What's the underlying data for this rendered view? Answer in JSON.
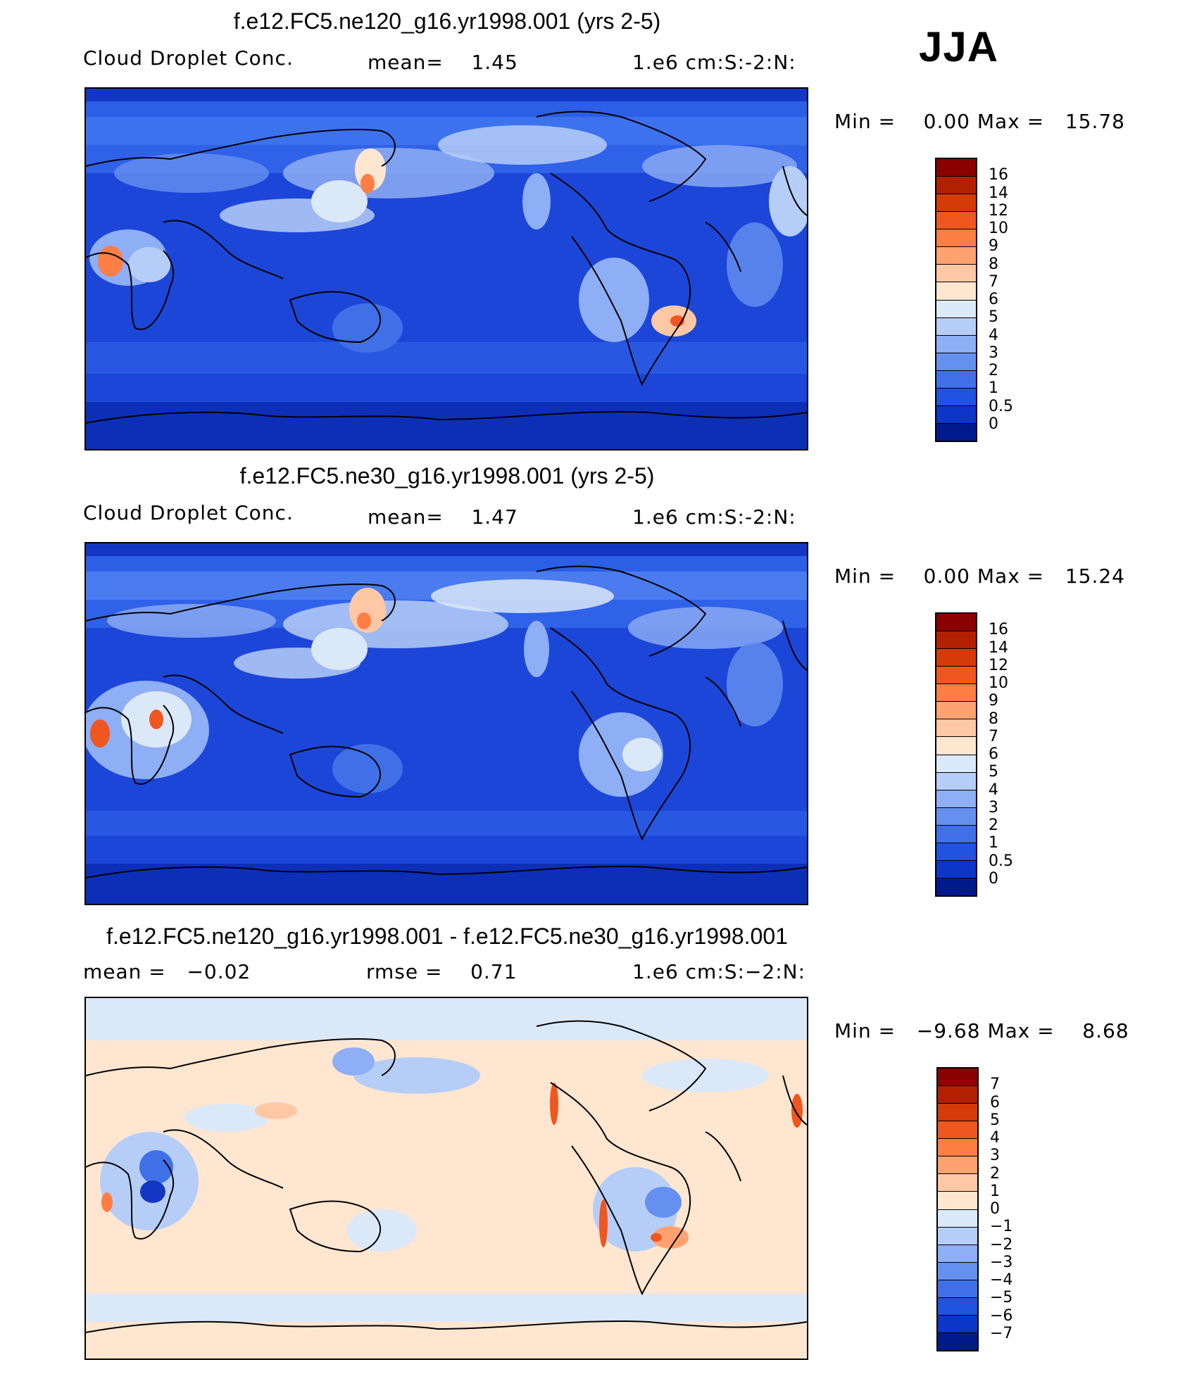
{
  "season": "JJA",
  "panels": [
    {
      "title": "f.e12.FC5.ne120_g16.yr1998.001 (yrs 2-5)",
      "left_label": "Cloud Droplet Conc.",
      "mid_label": "mean=    1.45",
      "right_label": "1.e6 cm:S:-2:N:",
      "min_max": "Min =    0.00 Max =   15.78",
      "colorbar": {
        "labels": [
          "16",
          "14",
          "12",
          "10",
          "9",
          "8",
          "7",
          "6",
          "5",
          "4",
          "3",
          "2",
          "1",
          "0.5",
          "0"
        ],
        "colors": [
          "#8b0000",
          "#b22000",
          "#d43a0a",
          "#f0561f",
          "#ff7e45",
          "#ffa270",
          "#ffc8a5",
          "#ffe6d1",
          "#dbe8f8",
          "#b6cef7",
          "#8eaef5",
          "#6690f0",
          "#3f70e8",
          "#2152e0",
          "#0c36c8",
          "#001a8e"
        ]
      }
    },
    {
      "title": "f.e12.FC5.ne30_g16.yr1998.001 (yrs 2-5)",
      "left_label": "Cloud Droplet Conc.",
      "mid_label": "mean=    1.47",
      "right_label": "1.e6 cm:S:-2:N:",
      "min_max": "Min =    0.00 Max =   15.24",
      "colorbar": {
        "labels": [
          "16",
          "14",
          "12",
          "10",
          "9",
          "8",
          "7",
          "6",
          "5",
          "4",
          "3",
          "2",
          "1",
          "0.5",
          "0"
        ],
        "colors": [
          "#8b0000",
          "#b22000",
          "#d43a0a",
          "#f0561f",
          "#ff7e45",
          "#ffa270",
          "#ffc8a5",
          "#ffe6d1",
          "#dbe8f8",
          "#b6cef7",
          "#8eaef5",
          "#6690f0",
          "#3f70e8",
          "#2152e0",
          "#0c36c8",
          "#001a8e"
        ]
      }
    },
    {
      "title": "f.e12.FC5.ne120_g16.yr1998.001 - f.e12.FC5.ne30_g16.yr1998.001",
      "left_label": "mean =   −0.02",
      "mid_label": "rmse =    0.71",
      "right_label": "1.e6 cm:S:−2:N:",
      "min_max": "Min =   −9.68 Max =    8.68",
      "colorbar": {
        "labels": [
          "7",
          "6",
          "5",
          "4",
          "3",
          "2",
          "1",
          "0",
          "−1",
          "−2",
          "−3",
          "−4",
          "−5",
          "−6",
          "−7"
        ],
        "colors": [
          "#8b0000",
          "#b22000",
          "#d43a0a",
          "#f0561f",
          "#ff7e45",
          "#ffa270",
          "#ffc8a5",
          "#ffe6d1",
          "#dbe8f8",
          "#b6cef7",
          "#8eaef5",
          "#6690f0",
          "#3f70e8",
          "#2152e0",
          "#0c36c8",
          "#001a8e"
        ]
      }
    }
  ]
}
